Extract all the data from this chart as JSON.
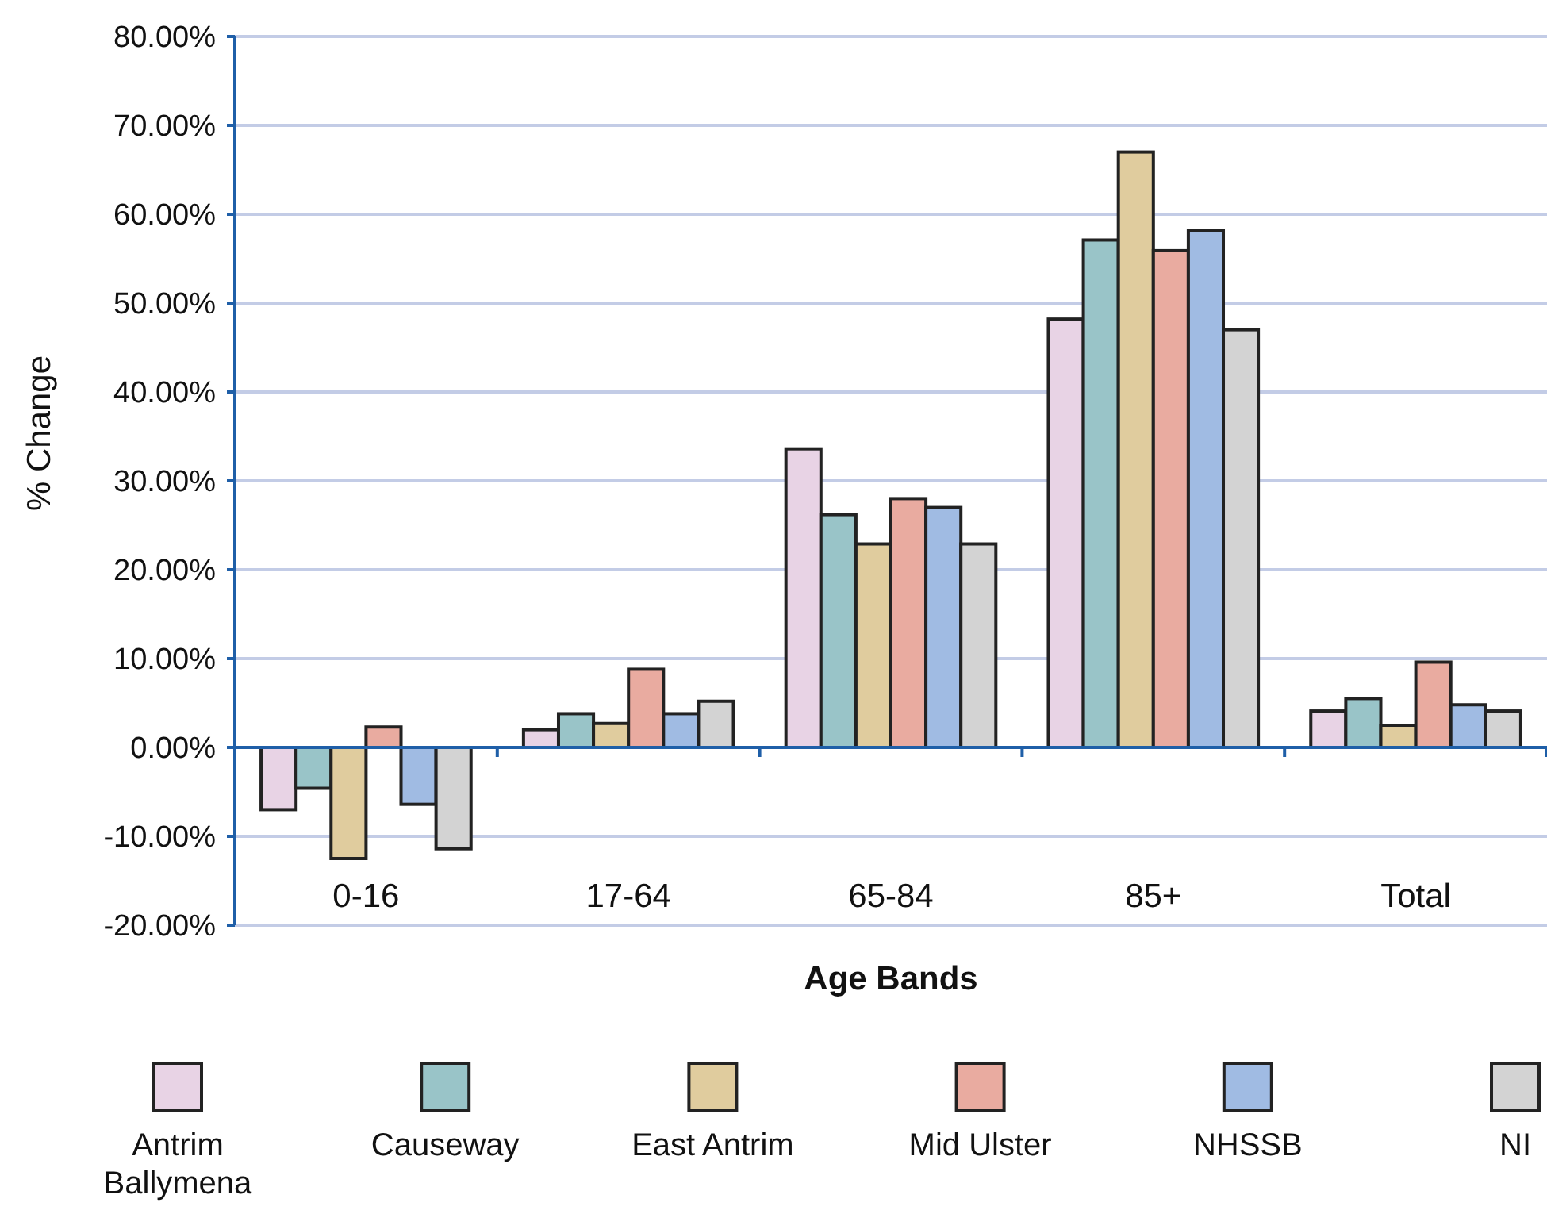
{
  "chart_data": {
    "type": "bar",
    "xlabel": "Age Bands",
    "ylabel": "% Change",
    "categories": [
      "0-16",
      "17-64",
      "65-84",
      "85+",
      "Total"
    ],
    "series": [
      {
        "name": "Antrim Ballymena",
        "color": "#e8d3e5",
        "values": [
          -7.0,
          2.0,
          33.6,
          48.2,
          4.1
        ]
      },
      {
        "name": "Causeway",
        "color": "#99c4c8",
        "values": [
          -4.6,
          3.8,
          26.2,
          57.1,
          5.5
        ]
      },
      {
        "name": "East Antrim",
        "color": "#e0cc9e",
        "values": [
          -12.5,
          2.7,
          22.9,
          67.0,
          2.5
        ]
      },
      {
        "name": "Mid Ulster",
        "color": "#e9aba0",
        "values": [
          2.3,
          8.8,
          28.0,
          55.9,
          9.6
        ]
      },
      {
        "name": "NHSSB",
        "color": "#a0bbe3",
        "values": [
          -6.4,
          3.8,
          27.0,
          58.2,
          4.8
        ]
      },
      {
        "name": "NI",
        "color": "#d3d3d3",
        "values": [
          -11.4,
          5.2,
          22.9,
          47.0,
          4.1
        ]
      }
    ],
    "ylim": [
      -20,
      80
    ],
    "yticks": [
      {
        "value": -20,
        "label": "-20.00%"
      },
      {
        "value": -10,
        "label": "-10.00%"
      },
      {
        "value": 0,
        "label": "0.00%"
      },
      {
        "value": 10,
        "label": "10.00%"
      },
      {
        "value": 20,
        "label": "20.00%"
      },
      {
        "value": 30,
        "label": "30.00%"
      },
      {
        "value": 40,
        "label": "40.00%"
      },
      {
        "value": 50,
        "label": "50.00%"
      },
      {
        "value": 60,
        "label": "60.00%"
      },
      {
        "value": 70,
        "label": "70.00%"
      },
      {
        "value": 80,
        "label": "80.00%"
      }
    ],
    "ref_lines": [
      {
        "axis": "y",
        "value": 0,
        "color": "#1f5fa8"
      }
    ],
    "grid": "y",
    "legend": "bottom"
  }
}
